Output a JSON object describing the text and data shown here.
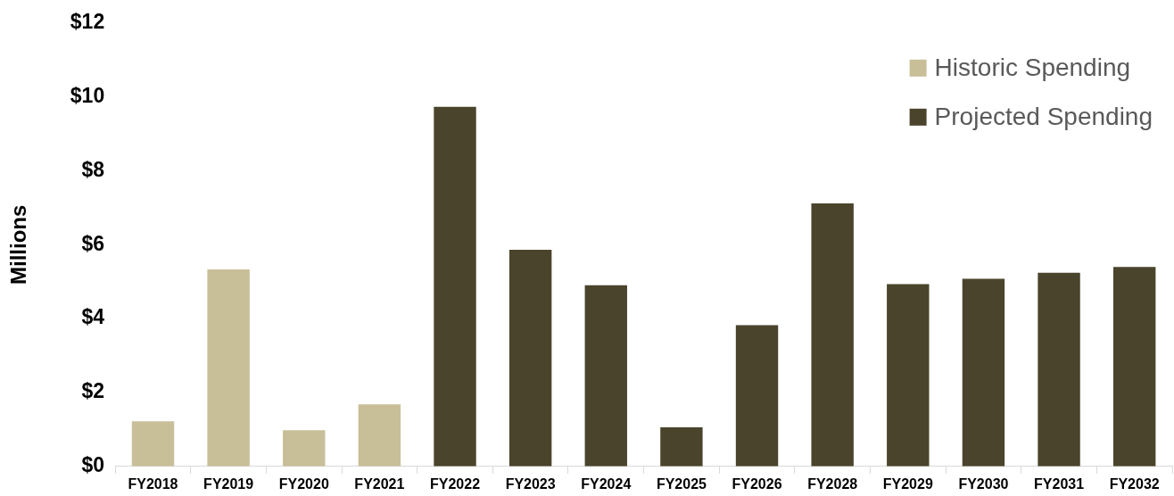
{
  "chart_data": {
    "type": "bar",
    "ylabel": "Millions",
    "categories": [
      "FY2018",
      "FY2019",
      "FY2020",
      "FY2021",
      "FY2022",
      "FY2023",
      "FY2024",
      "FY2025",
      "FY2026",
      "FY2028",
      "FY2029",
      "FY2030",
      "FY2031",
      "FY2032"
    ],
    "series": [
      {
        "name": "Historic Spending",
        "color": "#c8bf99",
        "values": [
          1.22,
          5.33,
          0.98,
          1.68,
          null,
          null,
          null,
          null,
          null,
          null,
          null,
          null,
          null,
          null
        ]
      },
      {
        "name": "Projected Spending",
        "color": "#4a442c",
        "values": [
          null,
          null,
          null,
          null,
          9.73,
          5.86,
          4.9,
          1.06,
          3.82,
          7.12,
          4.93,
          5.08,
          5.24,
          5.4
        ]
      }
    ],
    "ylim": [
      0,
      12
    ],
    "yticks": [
      {
        "value": 0,
        "label": "$0"
      },
      {
        "value": 2,
        "label": "$2"
      },
      {
        "value": 4,
        "label": "$4"
      },
      {
        "value": 6,
        "label": "$6"
      },
      {
        "value": 8,
        "label": "$8"
      },
      {
        "value": 10,
        "label": "$10"
      },
      {
        "value": 12,
        "label": "$12"
      }
    ],
    "grid": false,
    "legend": "top right"
  }
}
